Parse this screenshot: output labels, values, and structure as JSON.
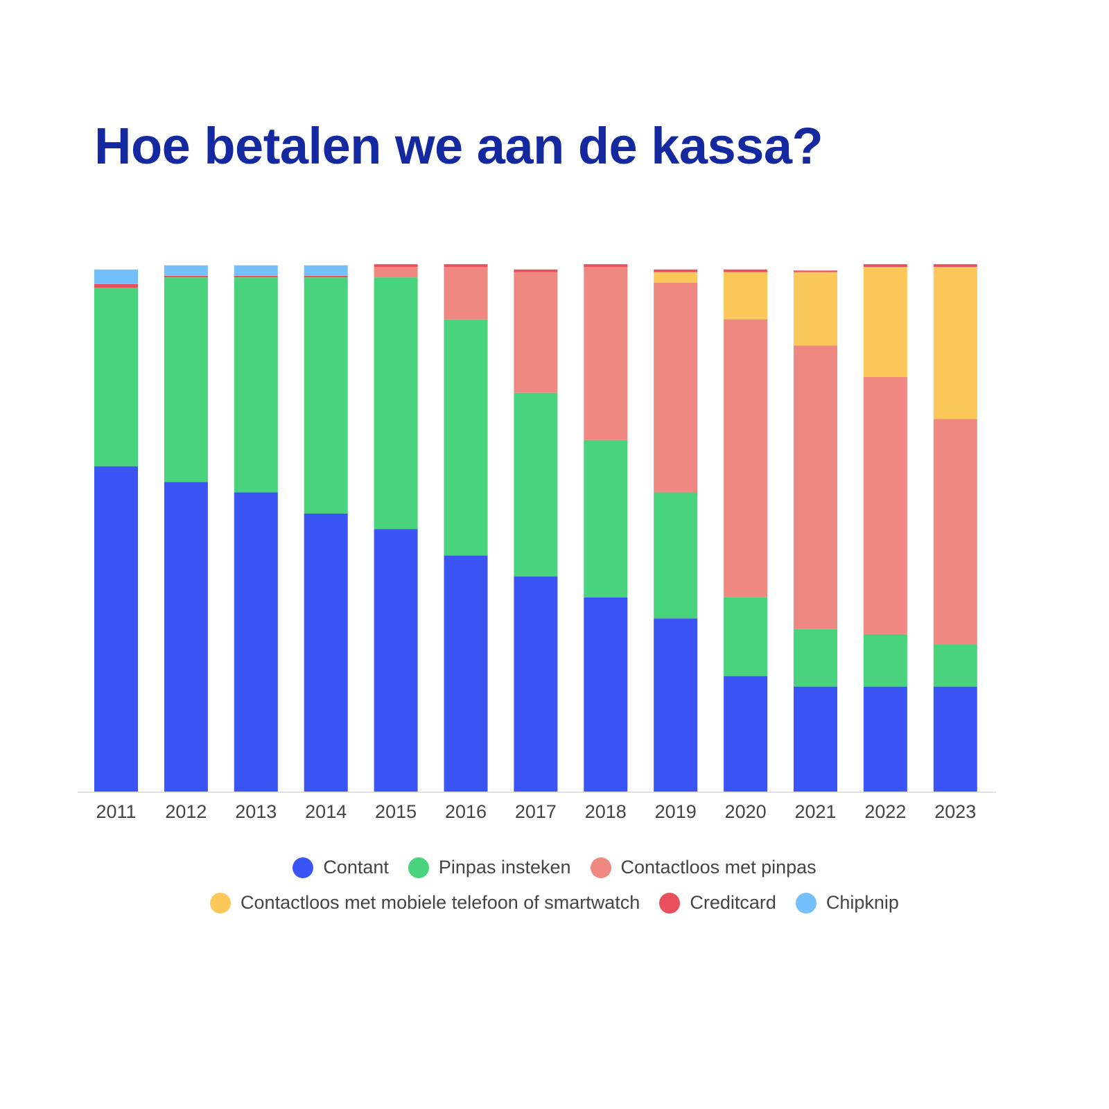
{
  "chart_data": {
    "type": "bar",
    "stacked": true,
    "title": "Hoe betalen we aan de kassa?",
    "xlabel": "",
    "ylabel": "",
    "ylim": [
      0,
      100
    ],
    "grid": false,
    "legend_position": "bottom",
    "categories": [
      "2011",
      "2012",
      "2013",
      "2014",
      "2015",
      "2016",
      "2017",
      "2018",
      "2019",
      "2020",
      "2021",
      "2022",
      "2023"
    ],
    "series": [
      {
        "name": "Contant",
        "color": "#3b55f5",
        "values": [
          62,
          59,
          57,
          53,
          50,
          45,
          41,
          37,
          33,
          22,
          20,
          20,
          20
        ]
      },
      {
        "name": "Pinpas insteken",
        "color": "#4ad37d",
        "values": [
          34,
          39,
          41,
          45,
          48,
          45,
          35,
          30,
          24,
          15,
          11,
          10,
          8
        ]
      },
      {
        "name": "Contactloos met pinpas",
        "color": "#f08882",
        "values": [
          0,
          0,
          0,
          0,
          2,
          10,
          23,
          33,
          40,
          53,
          54,
          49,
          43
        ]
      },
      {
        "name": "Contactloos met mobiele telefoon of smartwatch",
        "color": "#fcc85a",
        "values": [
          0,
          0,
          0,
          0,
          0,
          0,
          0,
          0,
          2,
          9,
          14,
          21,
          29
        ]
      },
      {
        "name": "Creditcard",
        "color": "#e8505b",
        "values": [
          0.7,
          0.3,
          0.3,
          0.3,
          0.5,
          0.5,
          0.5,
          0.5,
          0.5,
          0.5,
          0.3,
          0.5,
          0.5
        ]
      },
      {
        "name": "Chipknip",
        "color": "#74c0fc",
        "values": [
          2.8,
          2,
          2,
          2,
          0,
          0,
          0,
          0,
          0,
          0,
          0,
          0,
          0
        ]
      }
    ]
  }
}
